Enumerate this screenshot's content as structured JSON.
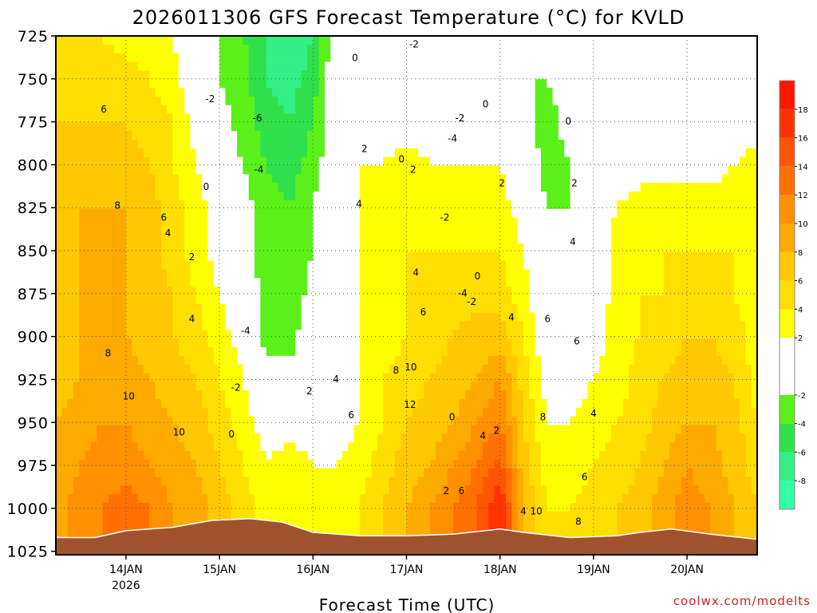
{
  "chart_data": {
    "type": "heatmap",
    "title": "2026011306 GFS Forecast Temperature (°C) for KVLD",
    "xlabel": "Forecast Time (UTC)",
    "ylabel": "",
    "credit": "coolwx.com/modelts",
    "x_ticks": [
      {
        "label": "14JAN",
        "sub": "2026",
        "t": 18
      },
      {
        "label": "15JAN",
        "t": 42
      },
      {
        "label": "16JAN",
        "t": 66
      },
      {
        "label": "17JAN",
        "t": 90
      },
      {
        "label": "18JAN",
        "t": 114
      },
      {
        "label": "19JAN",
        "t": 138
      },
      {
        "label": "20JAN",
        "t": 162
      }
    ],
    "x_range_hours": [
      0,
      180
    ],
    "y_ticks": [
      725,
      750,
      775,
      800,
      825,
      850,
      875,
      900,
      925,
      950,
      975,
      1000,
      1025
    ],
    "y_range_hPa": [
      725,
      1027
    ],
    "colorbar": {
      "ticks": [
        -8,
        -6,
        -4,
        -2,
        2,
        4,
        6,
        8,
        10,
        12,
        14,
        16,
        18
      ],
      "bins": [
        {
          "lo": -10,
          "hi": -8,
          "color": "#33ffa8"
        },
        {
          "lo": -8,
          "hi": -6,
          "color": "#33ef85"
        },
        {
          "lo": -6,
          "hi": -4,
          "color": "#30e04c"
        },
        {
          "lo": -4,
          "hi": -2,
          "color": "#5cf01a"
        },
        {
          "lo": -2,
          "hi": 0,
          "color": "#ffffff"
        },
        {
          "lo": 0,
          "hi": 2,
          "color": "#ffffff"
        },
        {
          "lo": 2,
          "hi": 4,
          "color": "#ffff00"
        },
        {
          "lo": 4,
          "hi": 6,
          "color": "#ffdf00"
        },
        {
          "lo": 6,
          "hi": 8,
          "color": "#ffc800"
        },
        {
          "lo": 8,
          "hi": 10,
          "color": "#ffaa00"
        },
        {
          "lo": 10,
          "hi": 12,
          "color": "#ff9000"
        },
        {
          "lo": 12,
          "hi": 14,
          "color": "#ff7000"
        },
        {
          "lo": 14,
          "hi": 16,
          "color": "#ff5500"
        },
        {
          "lo": 16,
          "hi": 18,
          "color": "#ff3300"
        },
        {
          "lo": 18,
          "hi": 20,
          "color": "#ff1500"
        }
      ]
    },
    "surface_pressure_hPa": [
      {
        "t": 0,
        "p": 1017
      },
      {
        "t": 10,
        "p": 1017
      },
      {
        "t": 18,
        "p": 1013
      },
      {
        "t": 30,
        "p": 1011
      },
      {
        "t": 40,
        "p": 1007
      },
      {
        "t": 50,
        "p": 1006
      },
      {
        "t": 58,
        "p": 1008
      },
      {
        "t": 66,
        "p": 1014
      },
      {
        "t": 78,
        "p": 1016
      },
      {
        "t": 90,
        "p": 1016
      },
      {
        "t": 102,
        "p": 1015
      },
      {
        "t": 114,
        "p": 1012
      },
      {
        "t": 120,
        "p": 1014
      },
      {
        "t": 132,
        "p": 1017
      },
      {
        "t": 144,
        "p": 1016
      },
      {
        "t": 150,
        "p": 1014
      },
      {
        "t": 158,
        "p": 1012
      },
      {
        "t": 168,
        "p": 1015
      },
      {
        "t": 180,
        "p": 1018
      }
    ],
    "temperature_grid": {
      "description": "Approximate temperature (degC) at pressure levels over forecast hours",
      "levels_hPa": [
        725,
        750,
        775,
        800,
        825,
        850,
        875,
        900,
        925,
        950,
        975,
        1000,
        1025
      ],
      "times_h": [
        0,
        6,
        12,
        18,
        24,
        30,
        36,
        42,
        48,
        54,
        60,
        66,
        72,
        78,
        84,
        90,
        96,
        102,
        108,
        114,
        120,
        126,
        132,
        138,
        144,
        150,
        156,
        162,
        168,
        174,
        180
      ],
      "values": [
        [
          4,
          4,
          4,
          3,
          3,
          2,
          -1,
          -2,
          -4,
          -6,
          -8,
          -6,
          0,
          1,
          0,
          0,
          1,
          0,
          0,
          -1,
          -2,
          -2,
          -1,
          0,
          0,
          0,
          0,
          -1,
          -1,
          0,
          0
        ],
        [
          5,
          5,
          5,
          5,
          4,
          3,
          0,
          -2,
          -3,
          -6,
          -7,
          -5,
          0,
          1,
          1,
          1,
          1,
          1,
          0,
          -1,
          -2,
          -2,
          -1,
          0,
          0,
          0,
          0,
          0,
          0,
          0,
          0
        ],
        [
          6,
          6,
          6,
          6,
          5,
          4,
          1,
          -1,
          -3,
          -5,
          -6,
          -4,
          0,
          1,
          1,
          1,
          1,
          1,
          0,
          1,
          -1,
          -3,
          -1,
          0,
          0,
          0,
          0,
          0,
          0,
          0,
          1
        ],
        [
          6,
          7,
          7,
          7,
          6,
          4,
          2,
          0,
          -2,
          -4,
          -5,
          -3,
          0,
          2,
          2,
          3,
          2,
          2,
          2,
          2,
          0,
          -3,
          -2,
          0,
          1,
          1,
          1,
          1,
          1,
          2,
          3
        ],
        [
          7,
          8,
          8,
          8,
          7,
          5,
          3,
          1,
          -1,
          -3,
          -4,
          -2,
          0,
          2,
          3,
          4,
          3,
          3,
          3,
          3,
          1,
          -2,
          -2,
          0,
          2,
          3,
          3,
          3,
          3,
          3,
          3
        ],
        [
          7,
          8,
          8,
          8,
          7,
          5,
          3,
          1,
          -1,
          -3,
          -4,
          -2,
          0,
          2,
          3,
          4,
          4,
          4,
          4,
          4,
          2,
          -2,
          -2,
          0,
          3,
          3,
          4,
          4,
          4,
          4,
          3
        ],
        [
          7,
          8,
          8,
          8,
          7,
          6,
          4,
          2,
          0,
          -3,
          -4,
          -1,
          1,
          2,
          3,
          4,
          4,
          5,
          5,
          5,
          3,
          -1,
          -2,
          0,
          3,
          4,
          4,
          5,
          5,
          4,
          3
        ],
        [
          7,
          8,
          8,
          8,
          7,
          6,
          5,
          3,
          1,
          -3,
          -3,
          0,
          1,
          2,
          3,
          4,
          5,
          6,
          7,
          7,
          4,
          0,
          0,
          1,
          3,
          4,
          5,
          6,
          6,
          5,
          3
        ],
        [
          7,
          8,
          9,
          9,
          8,
          7,
          6,
          4,
          2,
          -1,
          -1,
          0,
          1,
          2,
          4,
          5,
          6,
          7,
          8,
          10,
          5,
          1,
          1,
          2,
          3,
          5,
          6,
          7,
          7,
          6,
          3
        ],
        [
          8,
          9,
          10,
          10,
          9,
          8,
          7,
          5,
          3,
          1,
          1,
          1,
          1,
          2,
          4,
          6,
          7,
          8,
          10,
          12,
          6,
          2,
          2,
          3,
          4,
          5,
          7,
          8,
          8,
          7,
          4
        ],
        [
          8,
          10,
          11,
          11,
          10,
          9,
          8,
          6,
          4,
          2,
          3,
          2,
          2,
          3,
          5,
          7,
          8,
          10,
          12,
          15,
          7,
          3,
          3,
          4,
          5,
          6,
          8,
          10,
          9,
          7,
          5
        ],
        [
          9,
          11,
          12,
          13,
          12,
          10,
          9,
          7,
          5,
          3,
          4,
          3,
          3,
          4,
          6,
          8,
          10,
          12,
          14,
          18,
          8,
          4,
          4,
          5,
          6,
          7,
          9,
          11,
          10,
          8,
          6
        ],
        [
          9,
          11,
          12,
          13,
          12,
          10,
          9,
          7,
          5,
          3,
          4,
          3,
          3,
          4,
          6,
          8,
          10,
          12,
          14,
          18,
          8,
          4,
          4,
          5,
          6,
          7,
          9,
          11,
          10,
          8,
          6
        ]
      ]
    },
    "contour_labels": [
      {
        "text": "6",
        "t": 12.3,
        "p": 768
      },
      {
        "text": "8",
        "t": 15.8,
        "p": 824
      },
      {
        "text": "8",
        "t": 13.4,
        "p": 910
      },
      {
        "text": "10",
        "t": 18.7,
        "p": 935
      },
      {
        "text": "6",
        "t": 27.7,
        "p": 831
      },
      {
        "text": "4",
        "t": 28.8,
        "p": 840
      },
      {
        "text": "2",
        "t": 34.9,
        "p": 854
      },
      {
        "text": "4",
        "t": 34.9,
        "p": 890
      },
      {
        "text": "10",
        "t": 31.6,
        "p": 956
      },
      {
        "text": "-2",
        "t": 39.6,
        "p": 762
      },
      {
        "text": "0",
        "t": 38.6,
        "p": 813
      },
      {
        "text": "-6",
        "t": 51.7,
        "p": 773
      },
      {
        "text": "-4",
        "t": 52.1,
        "p": 803
      },
      {
        "text": "-4",
        "t": 48.7,
        "p": 897
      },
      {
        "text": "-2",
        "t": 46.2,
        "p": 930
      },
      {
        "text": "0",
        "t": 45.1,
        "p": 957
      },
      {
        "text": "0",
        "t": 76.8,
        "p": 738
      },
      {
        "text": "2",
        "t": 79.2,
        "p": 791
      },
      {
        "text": "4",
        "t": 77.8,
        "p": 823
      },
      {
        "text": "2",
        "t": 65.1,
        "p": 932
      },
      {
        "text": "4",
        "t": 71.9,
        "p": 925
      },
      {
        "text": "6",
        "t": 75.8,
        "p": 946
      },
      {
        "text": "0",
        "t": 88.7,
        "p": 797
      },
      {
        "text": "2",
        "t": 91.7,
        "p": 803
      },
      {
        "text": "4",
        "t": 92.4,
        "p": 863
      },
      {
        "text": "6",
        "t": 94.3,
        "p": 886
      },
      {
        "text": "8",
        "t": 87.3,
        "p": 920
      },
      {
        "text": "10",
        "t": 91.1,
        "p": 918
      },
      {
        "text": "12",
        "t": 90.9,
        "p": 940
      },
      {
        "text": "-2",
        "t": 91.9,
        "p": 730
      },
      {
        "text": "-2",
        "t": 103.7,
        "p": 773
      },
      {
        "text": "-4",
        "t": 101.8,
        "p": 785
      },
      {
        "text": "-2",
        "t": 99.8,
        "p": 831
      },
      {
        "text": "0",
        "t": 110.3,
        "p": 765
      },
      {
        "text": "0",
        "t": 108.2,
        "p": 865
      },
      {
        "text": "-4",
        "t": 104.4,
        "p": 875
      },
      {
        "text": "-2",
        "t": 106.7,
        "p": 880
      },
      {
        "text": "0",
        "t": 101.7,
        "p": 947
      },
      {
        "text": "2",
        "t": 100.2,
        "p": 990
      },
      {
        "text": "6",
        "t": 104.1,
        "p": 990
      },
      {
        "text": "0",
        "t": 131.5,
        "p": 775
      },
      {
        "text": "2",
        "t": 114.5,
        "p": 811
      },
      {
        "text": "2",
        "t": 133.1,
        "p": 811
      },
      {
        "text": "4",
        "t": 132.7,
        "p": 845
      },
      {
        "text": "4",
        "t": 116.9,
        "p": 889
      },
      {
        "text": "2",
        "t": 113.1,
        "p": 955
      },
      {
        "text": "4",
        "t": 109.6,
        "p": 958
      },
      {
        "text": "6",
        "t": 126.2,
        "p": 890
      },
      {
        "text": "6",
        "t": 133.7,
        "p": 903
      },
      {
        "text": "8",
        "t": 125.0,
        "p": 947
      },
      {
        "text": "4",
        "t": 138.0,
        "p": 945
      },
      {
        "text": "6",
        "t": 135.7,
        "p": 982
      },
      {
        "text": "8",
        "t": 134.1,
        "p": 1008
      },
      {
        "text": "4",
        "t": 120.0,
        "p": 1002
      },
      {
        "text": "10",
        "t": 123.3,
        "p": 1002
      }
    ]
  }
}
